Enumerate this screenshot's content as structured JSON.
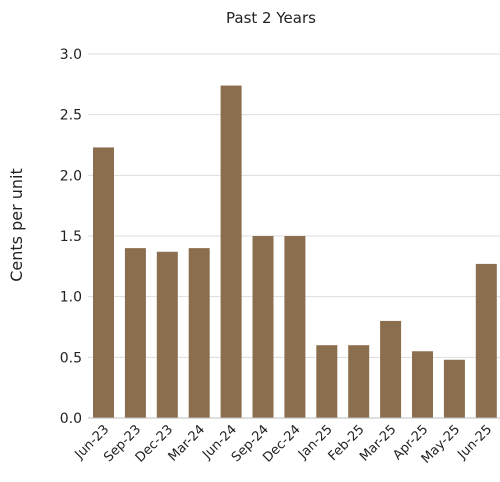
{
  "chart_data": {
    "type": "bar",
    "title": "Past 2 Years",
    "xlabel": "",
    "ylabel": "Cents per unit",
    "categories": [
      "Jun-23",
      "Sep-23",
      "Dec-23",
      "Mar-24",
      "Jun-24",
      "Sep-24",
      "Dec-24",
      "Jan-25",
      "Feb-25",
      "Mar-25",
      "Apr-25",
      "May-25",
      "Jun-25"
    ],
    "values": [
      2.23,
      1.4,
      1.37,
      1.4,
      2.74,
      1.5,
      1.5,
      0.6,
      0.6,
      0.8,
      0.55,
      0.48,
      1.27
    ],
    "ylim": [
      0,
      3.0
    ],
    "yticks": [
      "0.0",
      "0.5",
      "1.0",
      "1.5",
      "2.0",
      "2.5",
      "3.0"
    ],
    "grid": true,
    "bar_color": "#8b6e4e",
    "grid_color": "#dddddd"
  }
}
